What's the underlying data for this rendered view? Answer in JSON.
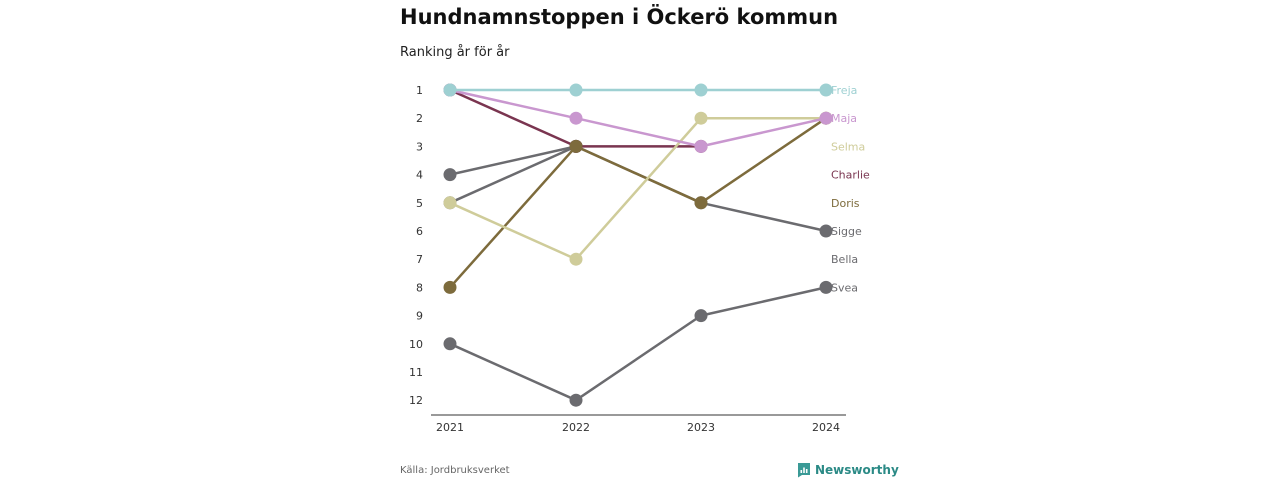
{
  "page": {
    "title": "Hundnamnstoppen i Öckerö kommun",
    "subtitle": "Ranking år för år",
    "source": "Källa: Jordbruksverket",
    "brand": "Newsworthy"
  },
  "chart_data": {
    "type": "line",
    "x": [
      "2021",
      "2022",
      "2023",
      "2024"
    ],
    "y_ticks": [
      1,
      2,
      3,
      4,
      5,
      6,
      7,
      8,
      9,
      10,
      11,
      12
    ],
    "ylim": [
      1,
      12
    ],
    "y_inverted": true,
    "grid": false,
    "series": [
      {
        "name": "Freja",
        "color": "#9ed0d2",
        "values": [
          1,
          1,
          1,
          1
        ]
      },
      {
        "name": "Maja",
        "color": "#c997cf",
        "values": [
          1,
          2,
          3,
          2
        ]
      },
      {
        "name": "Selma",
        "color": "#cfcc9a",
        "values": [
          5,
          7,
          2,
          2
        ]
      },
      {
        "name": "Charlie",
        "color": "#7a3550",
        "values": [
          1,
          3,
          3,
          null
        ]
      },
      {
        "name": "Doris",
        "color": "#7d6b3c",
        "values": [
          8,
          3,
          5,
          2
        ]
      },
      {
        "name": "Sigge",
        "color": "#6b6b6f",
        "values": [
          4,
          3,
          5,
          6
        ]
      },
      {
        "name": "Bella",
        "color": "#6b6b6f",
        "values": [
          5,
          3,
          null,
          null
        ]
      },
      {
        "name": "Svea",
        "color": "#6b6b6f",
        "values": [
          10,
          12,
          9,
          8
        ]
      }
    ]
  }
}
